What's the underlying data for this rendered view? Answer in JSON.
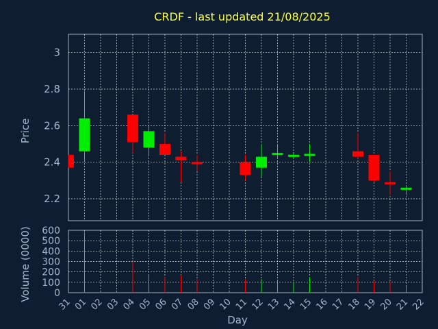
{
  "chart_data": {
    "type": "candlestick",
    "title": "CRDF - last updated 21/08/2025",
    "xlabel": "Day",
    "price_ylabel": "Price",
    "volume_ylabel": "Volume (0000)",
    "x_tick_labels": [
      "31",
      "01",
      "02",
      "03",
      "04",
      "05",
      "06",
      "07",
      "08",
      "09",
      "10",
      "11",
      "12",
      "13",
      "14",
      "15",
      "16",
      "17",
      "18",
      "19",
      "20",
      "21",
      "22"
    ],
    "price_ylim": [
      2.08,
      3.1
    ],
    "price_yticks": [
      2.2,
      2.4,
      2.6,
      2.8,
      3.0
    ],
    "price_ytick_labels": [
      "2.2",
      "2.4",
      "2.6",
      "2.8",
      "3"
    ],
    "volume_ylim": [
      0,
      600
    ],
    "volume_yticks": [
      0,
      100,
      200,
      300,
      400,
      500,
      600
    ],
    "volume_ytick_labels": [
      "0",
      "100",
      "200",
      "300",
      "400",
      "500",
      "600"
    ],
    "grid": true,
    "colors": {
      "up": "#00ee00",
      "down": "#ff0000",
      "background": "#0e1e30",
      "title": "#ffff33",
      "text": "#a3b8cf",
      "grid": "#ffffff"
    },
    "candles": [
      {
        "day": "31",
        "open": 2.44,
        "high": 2.44,
        "low": 2.37,
        "close": 2.37,
        "volume": 0
      },
      {
        "day": "01",
        "open": 2.46,
        "high": 2.79,
        "low": 2.4,
        "close": 2.64,
        "volume": 580
      },
      {
        "day": "04",
        "open": 2.66,
        "high": 2.66,
        "low": 2.45,
        "close": 2.51,
        "volume": 300
      },
      {
        "day": "05",
        "open": 2.48,
        "high": 2.6,
        "low": 2.43,
        "close": 2.57,
        "volume": 170
      },
      {
        "day": "06",
        "open": 2.5,
        "high": 2.56,
        "low": 2.44,
        "close": 2.44,
        "volume": 150
      },
      {
        "day": "07",
        "open": 2.43,
        "high": 2.46,
        "low": 2.29,
        "close": 2.41,
        "volume": 170
      },
      {
        "day": "08",
        "open": 2.4,
        "high": 2.44,
        "low": 2.35,
        "close": 2.39,
        "volume": 130
      },
      {
        "day": "11",
        "open": 2.4,
        "high": 2.44,
        "low": 2.3,
        "close": 2.33,
        "volume": 130
      },
      {
        "day": "12",
        "open": 2.37,
        "high": 2.5,
        "low": 2.32,
        "close": 2.43,
        "volume": 130
      },
      {
        "day": "13",
        "open": 2.44,
        "high": 2.5,
        "low": 2.42,
        "close": 2.45,
        "volume": 120
      },
      {
        "day": "14",
        "open": 2.43,
        "high": 2.45,
        "low": 2.42,
        "close": 2.44,
        "volume": 100
      },
      {
        "day": "15",
        "open": 2.44,
        "high": 2.5,
        "low": 2.4,
        "close": 2.44,
        "volume": 150
      },
      {
        "day": "18",
        "open": 2.46,
        "high": 2.56,
        "low": 2.42,
        "close": 2.43,
        "volume": 150
      },
      {
        "day": "19",
        "open": 2.44,
        "high": 2.44,
        "low": 2.29,
        "close": 2.3,
        "volume": 110
      },
      {
        "day": "20",
        "open": 2.29,
        "high": 2.35,
        "low": 2.22,
        "close": 2.28,
        "volume": 110
      },
      {
        "day": "21",
        "open": 2.25,
        "high": 2.27,
        "low": 2.22,
        "close": 2.26,
        "volume": 60
      }
    ]
  }
}
